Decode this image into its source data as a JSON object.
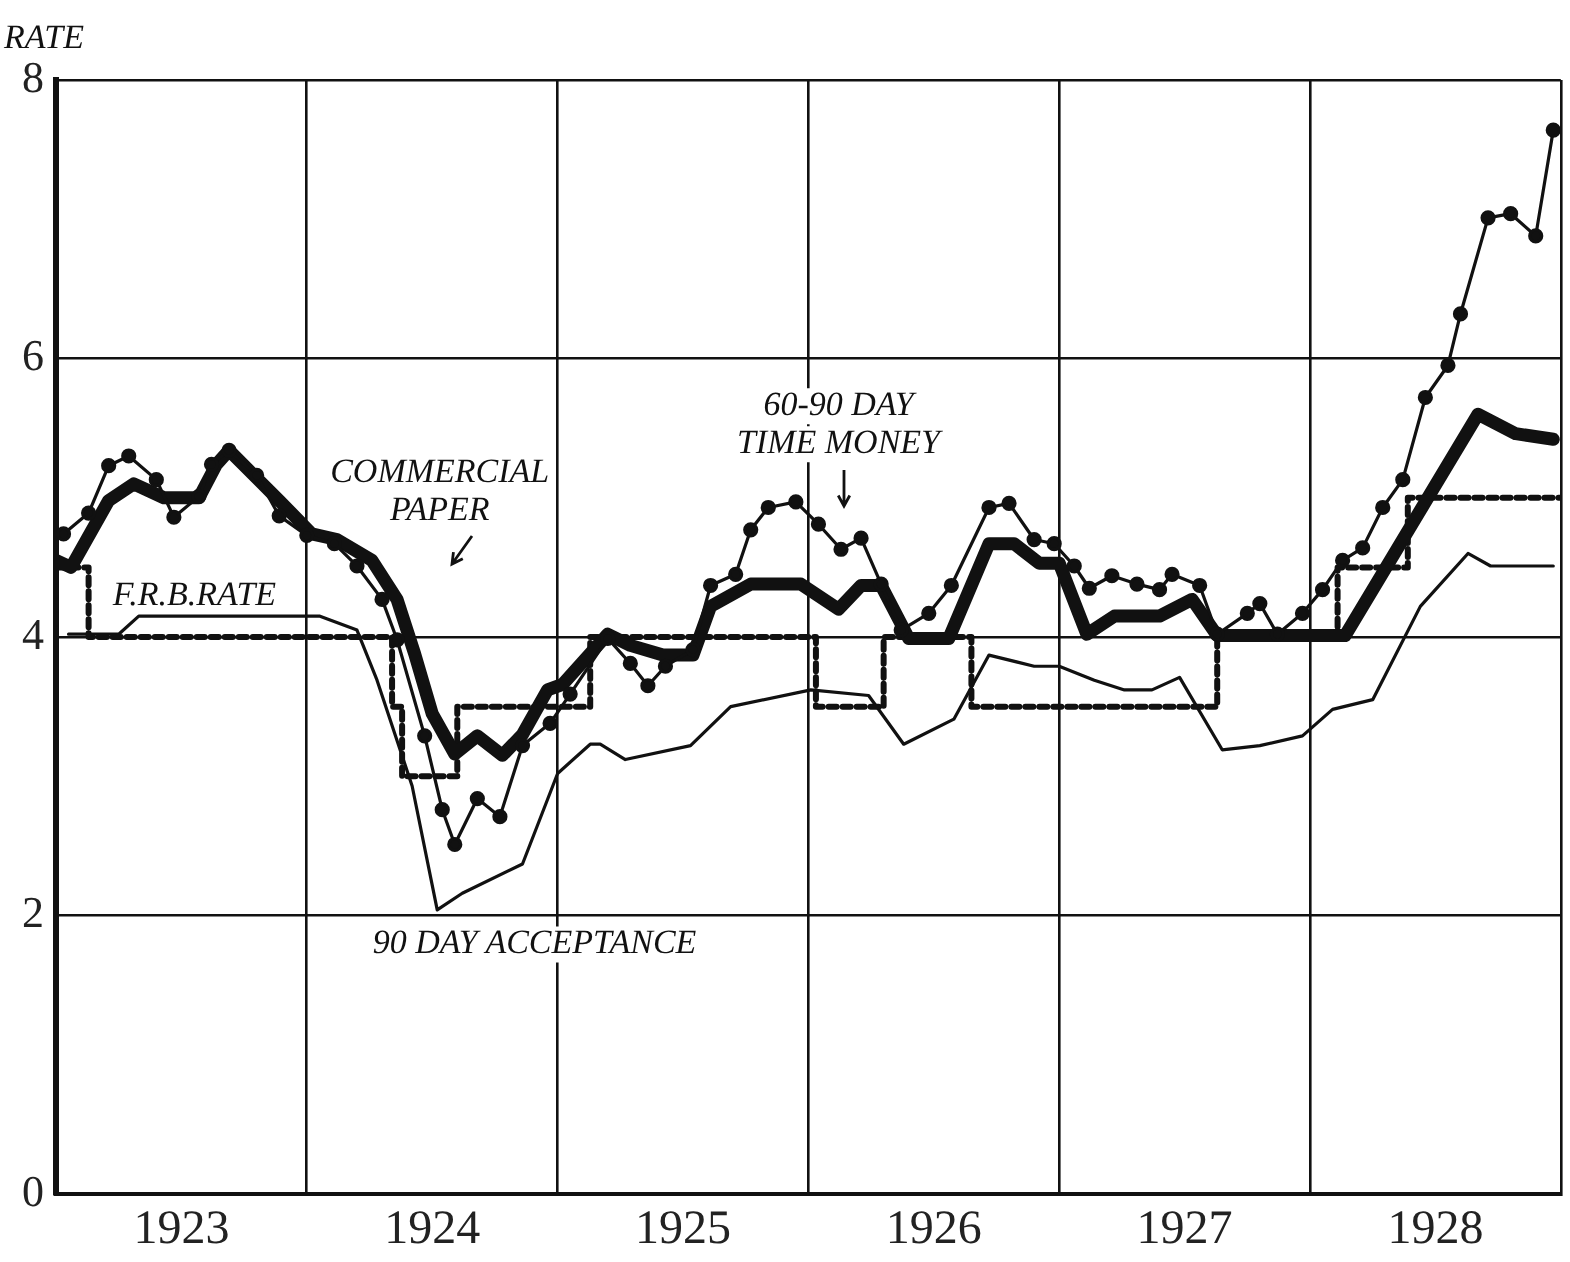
{
  "chart_data": {
    "type": "line",
    "ylabel": "RATE",
    "xlim": [
      1923,
      1929
    ],
    "ylim": [
      0,
      8
    ],
    "yticks": [
      0,
      2,
      4,
      6,
      8
    ],
    "xticks": [
      {
        "value": 1923,
        "label": null
      },
      {
        "value": 1923.5,
        "label": "1923"
      },
      {
        "value": 1924,
        "label": null
      },
      {
        "value": 1924.5,
        "label": "1924"
      },
      {
        "value": 1925,
        "label": null
      },
      {
        "value": 1925.5,
        "label": "1925"
      },
      {
        "value": 1926,
        "label": null
      },
      {
        "value": 1926.5,
        "label": "1926"
      },
      {
        "value": 1927,
        "label": null
      },
      {
        "value": 1927.5,
        "label": "1927"
      },
      {
        "value": 1928,
        "label": null
      },
      {
        "value": 1928.5,
        "label": "1928"
      },
      {
        "value": 1929,
        "label": null
      }
    ],
    "grid": true,
    "series": [
      {
        "color": "#111111",
        "marker": "circle",
        "line_style": "solid",
        "x": [
          1923.03,
          1923.13,
          1923.21,
          1923.29,
          1923.4,
          1923.47,
          1923.57,
          1923.62,
          1923.69,
          1923.8,
          1923.89,
          1924.0,
          1924.11,
          1924.2,
          1924.3,
          1924.36,
          1924.47,
          1924.54,
          1924.59,
          1924.68,
          1924.77,
          1924.86,
          1924.97,
          1925.05,
          1925.2,
          1925.29,
          1925.36,
          1925.43,
          1925.54,
          1925.61,
          1925.71,
          1925.77,
          1925.84,
          1925.95,
          1926.04,
          1926.13,
          1926.21,
          1926.29,
          1926.37,
          1926.48,
          1926.57,
          1926.72,
          1926.8,
          1926.9,
          1926.98,
          1927.06,
          1927.12,
          1927.21,
          1927.31,
          1927.4,
          1927.45,
          1927.56,
          1927.63,
          1927.75,
          1927.8,
          1927.87,
          1927.97,
          1928.05,
          1928.13,
          1928.21,
          1928.29,
          1928.37,
          1928.46,
          1928.55,
          1928.6,
          1928.71,
          1928.8,
          1928.9,
          1928.97
        ],
        "values": [
          4.74,
          4.89,
          5.23,
          5.3,
          5.13,
          4.86,
          5.01,
          5.24,
          5.34,
          5.16,
          4.87,
          4.73,
          4.67,
          4.51,
          4.27,
          3.98,
          3.29,
          2.76,
          2.51,
          2.84,
          2.71,
          3.22,
          3.38,
          3.59,
          3.99,
          3.81,
          3.65,
          3.79,
          3.91,
          4.37,
          4.45,
          4.77,
          4.93,
          4.97,
          4.81,
          4.63,
          4.71,
          4.38,
          4.05,
          4.17,
          4.37,
          4.93,
          4.96,
          4.7,
          4.67,
          4.51,
          4.35,
          4.44,
          4.38,
          4.34,
          4.45,
          4.37,
          4.02,
          4.17,
          4.24,
          4.02,
          4.17,
          4.34,
          4.55,
          4.64,
          4.93,
          5.13,
          5.72,
          5.95,
          6.32,
          7.01,
          7.04,
          6.88,
          7.64
        ]
      },
      {
        "color": "#111111",
        "marker": "none",
        "line_style": "solid",
        "x": [
          1923.0,
          1923.06,
          1923.21,
          1923.31,
          1923.43,
          1923.57,
          1923.64,
          1923.69,
          1923.89,
          1924.02,
          1924.12,
          1924.26,
          1924.36,
          1924.43,
          1924.5,
          1924.59,
          1924.68,
          1924.78,
          1924.86,
          1924.96,
          1925.02,
          1925.2,
          1925.29,
          1925.42,
          1925.54,
          1925.61,
          1925.77,
          1925.97,
          1926.12,
          1926.21,
          1926.29,
          1926.4,
          1926.56,
          1926.72,
          1926.82,
          1926.92,
          1927.0,
          1927.11,
          1927.22,
          1927.4,
          1927.53,
          1927.63,
          1928.14,
          1928.67,
          1928.82,
          1928.97
        ],
        "values": [
          4.55,
          4.5,
          4.98,
          5.1,
          5.0,
          5.0,
          5.24,
          5.34,
          4.98,
          4.74,
          4.7,
          4.55,
          4.27,
          3.88,
          3.45,
          3.16,
          3.29,
          3.15,
          3.3,
          3.62,
          3.66,
          4.02,
          3.94,
          3.87,
          3.87,
          4.22,
          4.38,
          4.38,
          4.2,
          4.37,
          4.37,
          3.99,
          3.99,
          4.67,
          4.67,
          4.53,
          4.53,
          4.02,
          4.15,
          4.15,
          4.27,
          4.01,
          4.01,
          5.6,
          5.46,
          5.42
        ]
      },
      {
        "type": "step",
        "color": "#111111",
        "marker": "none",
        "line_style": "dotted",
        "x": [
          1923.0,
          1923.13,
          1924.34,
          1924.38,
          1924.6,
          1925.13,
          1926.03,
          1926.3,
          1926.65,
          1927.63,
          1928.11,
          1928.39,
          1928.55,
          1929.0
        ],
        "values": [
          4,
          4.5,
          4,
          3.5,
          3,
          3.5,
          4,
          3.5,
          4,
          3.5,
          4,
          4.5,
          5,
          5
        ]
      },
      {
        "color": "#111111",
        "marker": "none",
        "line_style": "solid",
        "x": [
          1923.05,
          1923.25,
          1923.33,
          1924.05,
          1924.2,
          1924.28,
          1924.42,
          1924.52,
          1924.62,
          1924.86,
          1925.0,
          1925.13,
          1925.17,
          1925.27,
          1925.53,
          1925.69,
          1926.01,
          1926.24,
          1926.38,
          1926.58,
          1926.72,
          1926.9,
          1927.0,
          1927.14,
          1927.26,
          1927.37,
          1927.48,
          1927.65,
          1927.8,
          1927.97,
          1928.09,
          1928.25,
          1928.44,
          1928.63,
          1928.72,
          1928.97
        ],
        "values": [
          4.02,
          4.02,
          4.15,
          4.15,
          4.05,
          3.69,
          2.93,
          2.04,
          2.16,
          2.37,
          3.02,
          3.23,
          3.23,
          3.12,
          3.22,
          3.5,
          3.62,
          3.58,
          3.23,
          3.41,
          3.87,
          3.79,
          3.79,
          3.69,
          3.62,
          3.62,
          3.71,
          3.19,
          3.22,
          3.29,
          3.48,
          3.55,
          4.22,
          4.6,
          4.51,
          4.51
        ]
      }
    ],
    "annotations": [
      "COMMERCIAL\nPAPER",
      "F.R.B.RATE",
      "60-90 DAY\nTIME MONEY",
      "90 DAY ACCEPTANCE"
    ]
  }
}
